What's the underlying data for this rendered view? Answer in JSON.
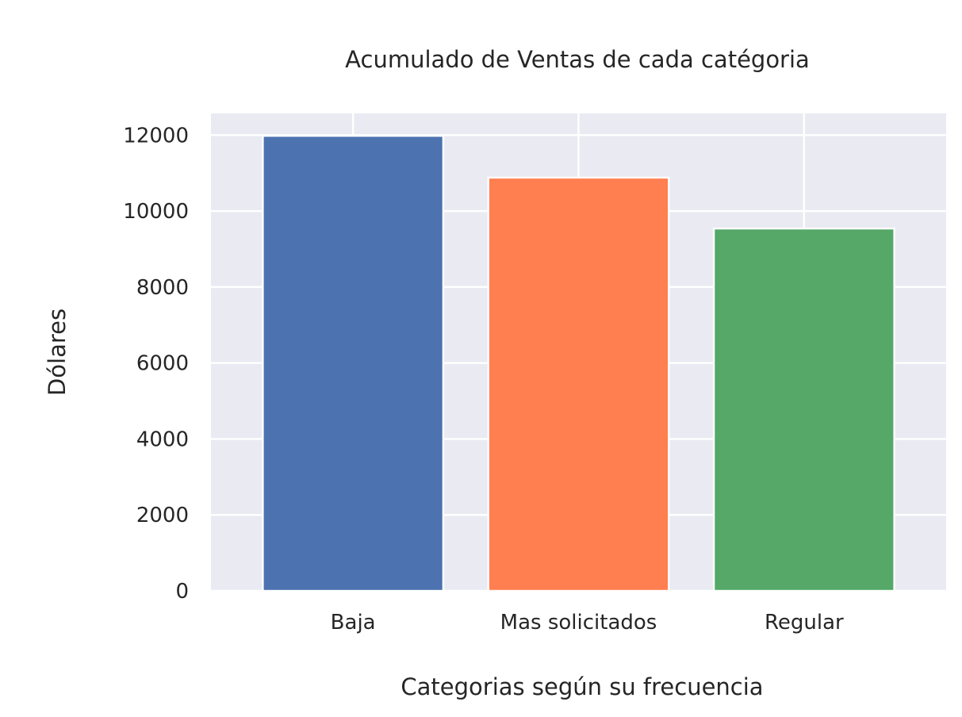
{
  "chart_data": {
    "type": "bar",
    "title": "Acumulado de Ventas de cada catégoria",
    "xlabel": "Categorias según su frecuencia",
    "ylabel": "Dólares",
    "categories": [
      "Baja",
      "Mas solicitados",
      "Regular"
    ],
    "values": [
      11980,
      10880,
      9540
    ],
    "colors": [
      "#4c72b0",
      "#ff7f50",
      "#55a868"
    ],
    "ylim": [
      0,
      12570
    ],
    "yticks": [
      0,
      2000,
      4000,
      6000,
      8000,
      10000,
      12000
    ],
    "grid": true,
    "background": "#eaeaf2",
    "legend": "none"
  }
}
